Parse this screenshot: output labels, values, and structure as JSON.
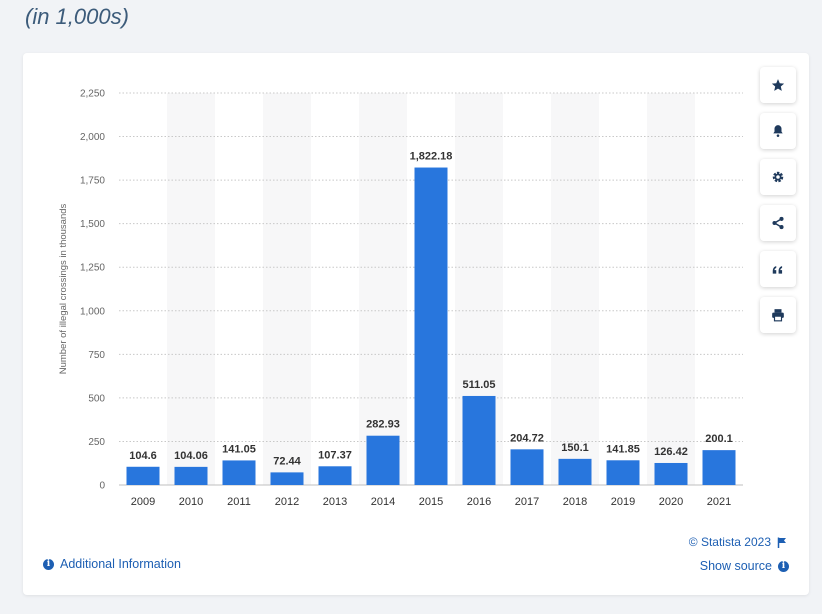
{
  "page": {
    "heading": "(in 1,000s)"
  },
  "toolbar": {
    "buttons": [
      {
        "name": "favorite-button",
        "icon": "star-icon"
      },
      {
        "name": "notification-button",
        "icon": "bell-icon"
      },
      {
        "name": "settings-button",
        "icon": "gear-icon"
      },
      {
        "name": "share-button",
        "icon": "share-icon"
      },
      {
        "name": "cite-button",
        "icon": "quote-icon"
      },
      {
        "name": "print-button",
        "icon": "printer-icon"
      }
    ]
  },
  "footer": {
    "additional_info": "Additional Information",
    "credit": "© Statista 2023",
    "show_source": "Show source"
  },
  "colors": {
    "bar": "#2876dd",
    "link": "#1d5fb3",
    "heading": "#3c5b7a"
  },
  "chart_data": {
    "type": "bar",
    "categories": [
      "2009",
      "2010",
      "2011",
      "2012",
      "2013",
      "2014",
      "2015",
      "2016",
      "2017",
      "2018",
      "2019",
      "2020",
      "2021"
    ],
    "values": [
      104.6,
      104.06,
      141.05,
      72.44,
      107.37,
      282.93,
      1822.18,
      511.05,
      204.72,
      150.1,
      141.85,
      126.42,
      200.1
    ],
    "value_labels": [
      "104.6",
      "104.06",
      "141.05",
      "72.44",
      "107.37",
      "282.93",
      "1,822.18",
      "511.05",
      "204.72",
      "150.1",
      "141.85",
      "126.42",
      "200.1"
    ],
    "ylabel": "Number of illegal crossings in thousands",
    "ylim": [
      0,
      2250
    ],
    "yticks": [
      0,
      250,
      500,
      750,
      1000,
      1250,
      1500,
      1750,
      2000,
      2250
    ],
    "ytick_labels": [
      "0",
      "250",
      "500",
      "750",
      "1,000",
      "1,250",
      "1,500",
      "1,750",
      "2,000",
      "2,250"
    ],
    "grid": true
  }
}
